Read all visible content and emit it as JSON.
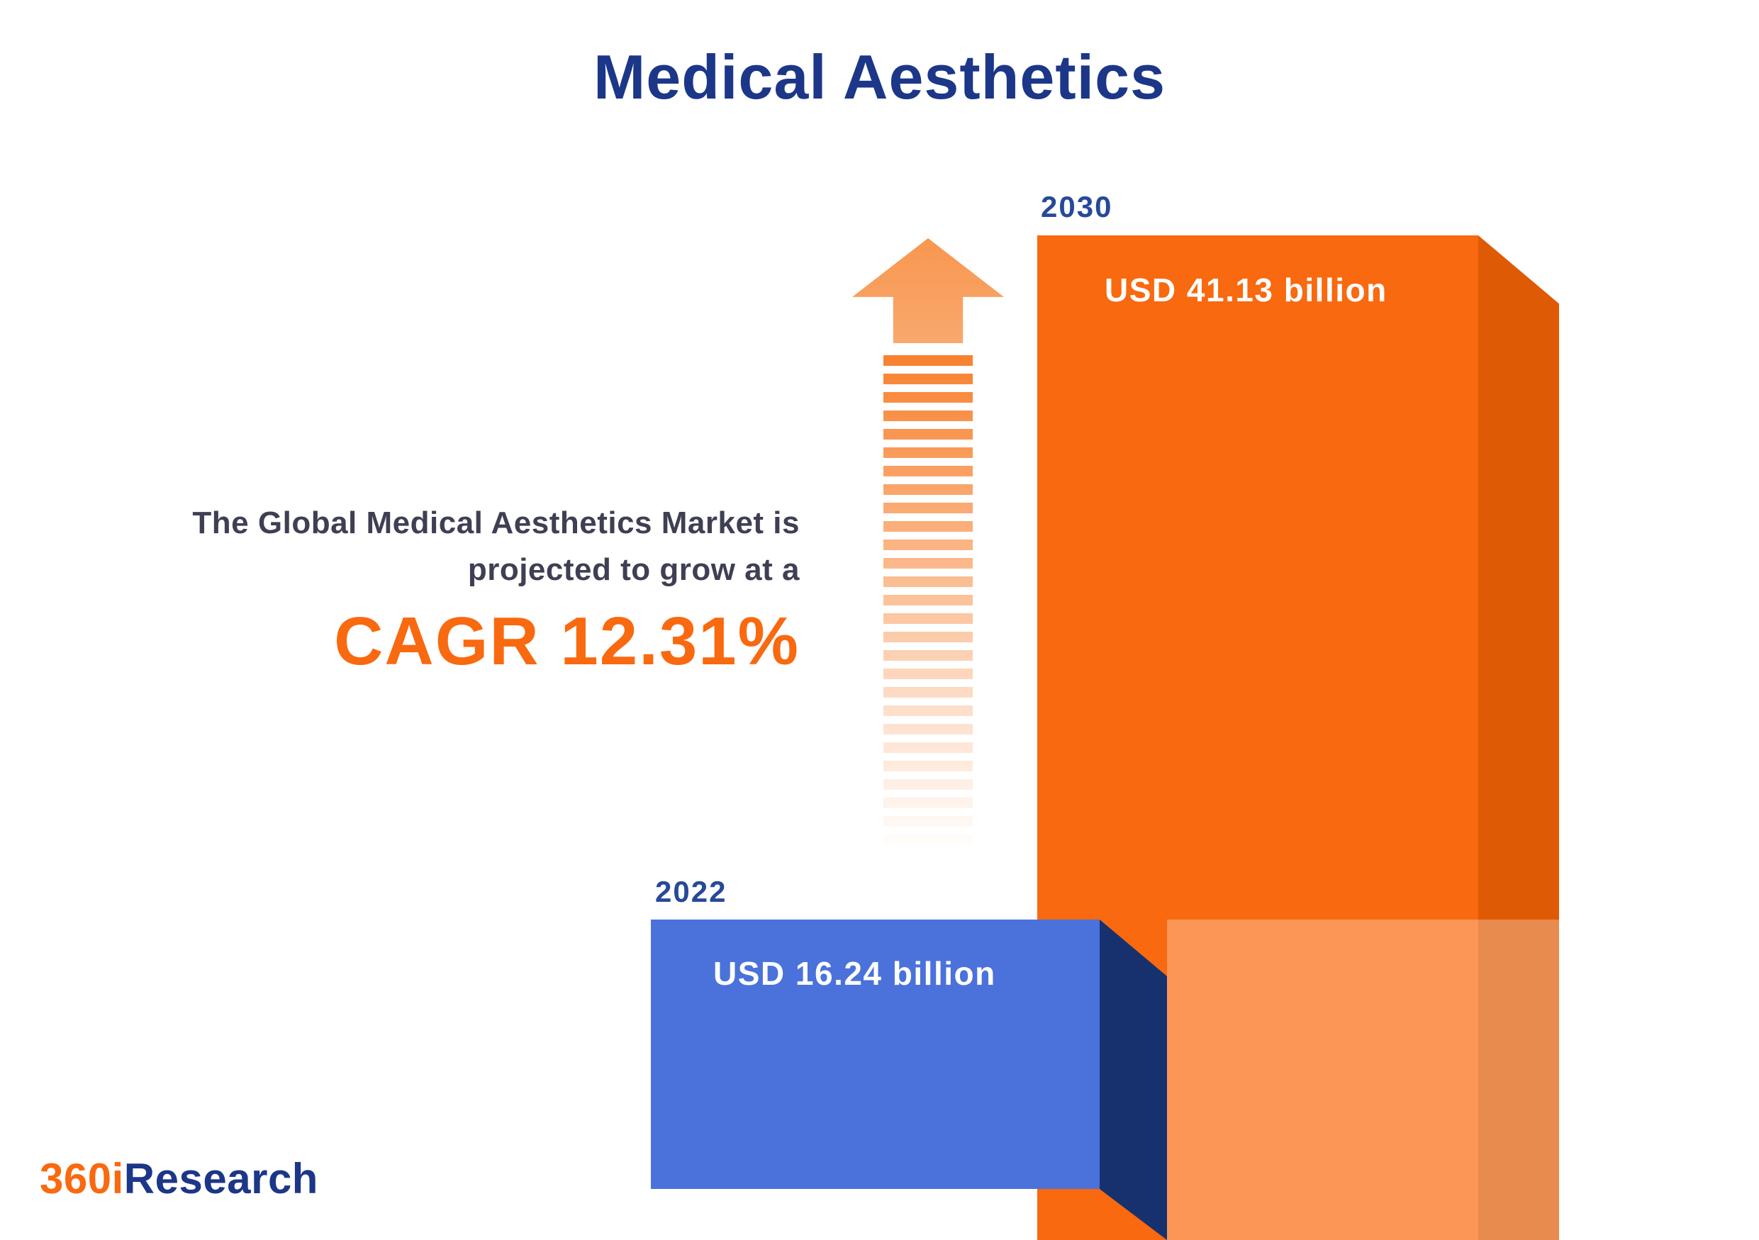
{
  "title": "Medical Aesthetics",
  "annotation": {
    "line1": "The Global Medical Aesthetics Market is",
    "line2": "projected to grow at a",
    "cagr": "CAGR 12.31%"
  },
  "logo": {
    "part1": "360i",
    "part2": "Research"
  },
  "colors": {
    "title_navy": "#1c3688",
    "accent_orange": "#f9690f",
    "bar_2030_front": "#f9690f",
    "bar_2030_side": "#df5a04",
    "bar_2030_overlay_light": "#fb9455",
    "bar_2022_front": "#4a72da",
    "bar_2022_side": "#16316e",
    "year_label_blue": "#27499a",
    "annotation_text": "#3f3f54",
    "value_label_text": "#ffffff"
  },
  "chart_data": {
    "type": "bar",
    "title": "Medical Aesthetics",
    "categories": [
      "2022",
      "2030"
    ],
    "values": [
      16.24,
      41.13
    ],
    "unit": "USD billion",
    "value_labels": [
      "USD 16.24 billion",
      "USD 41.13 billion"
    ],
    "cagr_percent": 12.31,
    "annotation": "The Global Medical Aesthetics Market is projected to grow at a CAGR 12.31%",
    "bar_colors": [
      "#4a72da",
      "#f9690f"
    ],
    "legend": "none",
    "grid": false
  }
}
